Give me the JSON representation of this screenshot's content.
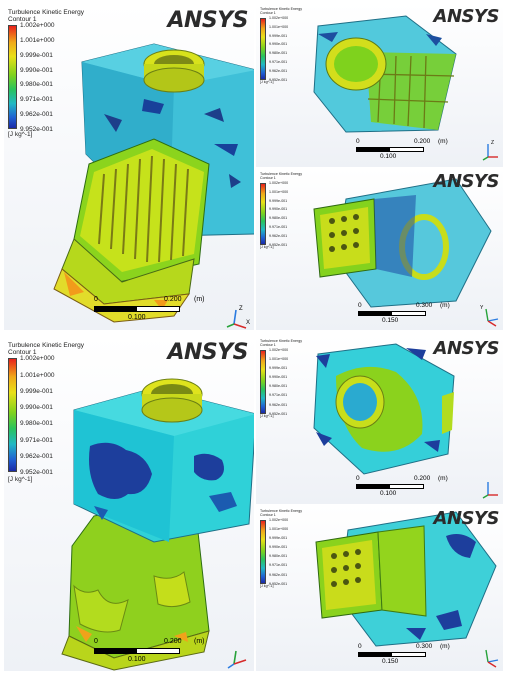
{
  "brand": {
    "logo_main": "ANSYS"
  },
  "legend": {
    "title": "Turbulence Kinetic Energy",
    "subtitle": "Contour 1",
    "ticks": [
      "1.002e+000",
      "1.001e+000",
      "9.999e-001",
      "9.990e-001",
      "9.980e-001",
      "9.971e-001",
      "9.962e-001",
      "9.952e-001"
    ],
    "unit": "[J kg^-1]"
  },
  "scale_large": {
    "zero": "0",
    "end": "0.200",
    "unit": "(m)",
    "mid": "0.100"
  },
  "scale_small_a": {
    "zero": "0",
    "end": "0.200",
    "unit": "(m)",
    "mid": "0.100"
  },
  "scale_small_b": {
    "zero": "0",
    "end": "0.300",
    "unit": "(m)",
    "mid": "0.150"
  },
  "triad": {
    "z": "Z",
    "x": "X",
    "y": "Y"
  },
  "colors": {
    "red": "#e8211b",
    "yellow": "#e9e019",
    "green": "#7fd21d",
    "cyan": "#21b8c4",
    "blue": "#1f5fd2"
  }
}
